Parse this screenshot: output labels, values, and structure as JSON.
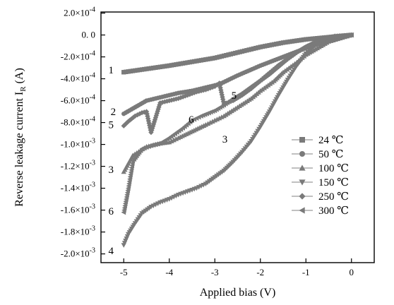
{
  "chart_data": {
    "type": "scatter",
    "xlabel": "Applied bias (V)",
    "ylabel": "Reverse leakage current I",
    "ylabel_sub": "R",
    "ylabel_unit": " (A)",
    "xlim": [
      -5.5,
      0.5
    ],
    "ylim": [
      -0.00208,
      0.00021
    ],
    "x_ticks": [
      -5,
      -4,
      -3,
      -2,
      -1,
      0
    ],
    "x_tick_labels": [
      "-5",
      "-4",
      "-3",
      "-2",
      "-1",
      "0"
    ],
    "y_ticks": [
      0.0002,
      0,
      -0.0002,
      -0.0004,
      -0.0006,
      -0.0008,
      -0.001,
      -0.0012,
      -0.0014,
      -0.0016,
      -0.0018,
      -0.002
    ],
    "y_tick_labels": [
      {
        "mant": "2.0×10",
        "exp": "-4"
      },
      {
        "mant": "0. 0",
        "exp": ""
      },
      {
        "mant": "-2.0×10",
        "exp": "-4"
      },
      {
        "mant": "-4.0×10",
        "exp": "-4"
      },
      {
        "mant": "-6.0×10",
        "exp": "-4"
      },
      {
        "mant": "-8.0×10",
        "exp": "-4"
      },
      {
        "mant": "-1.0×10",
        "exp": "-3"
      },
      {
        "mant": "-1.2×10",
        "exp": "-3"
      },
      {
        "mant": "-1.4×10",
        "exp": "-3"
      },
      {
        "mant": "-1.6×10",
        "exp": "-3"
      },
      {
        "mant": "-1.8×10",
        "exp": "-3"
      },
      {
        "mant": "-2.0×10",
        "exp": "-3"
      }
    ],
    "legend_position": "right",
    "series": [
      {
        "name": "24 ℃",
        "marker": "square",
        "x": [
          -5,
          -4.5,
          -4,
          -3.5,
          -3,
          -2.5,
          -2,
          -1.5,
          -1,
          -0.5,
          0
        ],
        "y": [
          -0.00034,
          -0.00031,
          -0.00028,
          -0.000245,
          -0.00021,
          -0.00016,
          -0.00011,
          -7e-05,
          -4e-05,
          -2e-05,
          0
        ]
      },
      {
        "name": "50 ℃",
        "marker": "circle",
        "x": [
          -5,
          -4.75,
          -4.5,
          -4.2,
          -3.8,
          -3.5,
          -3.2,
          -2.9,
          -2.5,
          -2,
          -1.5,
          -1,
          -0.5,
          0
        ],
        "y": [
          -0.00072,
          -0.00066,
          -0.0006,
          -0.00057,
          -0.00053,
          -0.00051,
          -0.00048,
          -0.00045,
          -0.00037,
          -0.00028,
          -0.0002,
          -0.00012,
          -5e-05,
          0
        ]
      },
      {
        "name": "100 ℃",
        "marker": "triangle-up",
        "x": [
          -5,
          -4.8,
          -4.5,
          -4.2,
          -4,
          -3.8,
          -3.5,
          -3.2,
          -3,
          -2.8,
          -2.5,
          -2.2,
          -2,
          -1.7,
          -1.5,
          -1.2,
          -1,
          -0.5,
          0
        ],
        "y": [
          -0.00125,
          -0.0011,
          -0.00102,
          -0.00099,
          -0.00098,
          -0.00094,
          -0.00088,
          -0.00082,
          -0.00078,
          -0.00074,
          -0.00066,
          -0.00058,
          -0.00051,
          -0.00042,
          -0.00034,
          -0.00025,
          -0.00018,
          -6e-05,
          0
        ]
      },
      {
        "name": "150 ℃",
        "marker": "triangle-down",
        "x": [
          -5,
          -4.9,
          -4.75,
          -4.6,
          -4.4,
          -4.2,
          -4,
          -3.8,
          -3.6,
          -3.4,
          -3.2,
          -3,
          -2.8,
          -2.6,
          -2.4,
          -2.2,
          -2,
          -1.8,
          -1.6,
          -1.4,
          -1.2,
          -1,
          -0.8,
          -0.6,
          -0.4,
          -0.2,
          0
        ],
        "y": [
          -0.00192,
          -0.00182,
          -0.00172,
          -0.00163,
          -0.00157,
          -0.00153,
          -0.0015,
          -0.00146,
          -0.00143,
          -0.0014,
          -0.00136,
          -0.0013,
          -0.00124,
          -0.00116,
          -0.00107,
          -0.00097,
          -0.00084,
          -0.0007,
          -0.00055,
          -0.00041,
          -0.00028,
          -0.00017,
          -0.0001,
          -5e-05,
          -2e-05,
          -1e-05,
          0
        ]
      },
      {
        "name": "250 ℃",
        "marker": "diamond",
        "x": [
          -5,
          -4.9,
          -4.75,
          -4.6,
          -4.5,
          -4.4,
          -4.2,
          -4,
          -3.8,
          -3.6,
          -3.4,
          -3.2,
          -3,
          -2.9,
          -2.8,
          -2.6,
          -2.4,
          -2.2,
          -2,
          -1.8,
          -1.6,
          -1.4,
          -1.2,
          -1,
          -0.8,
          -0.6,
          -0.4,
          -0.2,
          0
        ],
        "y": [
          -0.00083,
          -0.00079,
          -0.00074,
          -0.00071,
          -0.0007,
          -0.00089,
          -0.00062,
          -0.0006,
          -0.00058,
          -0.00055,
          -0.00052,
          -0.0005,
          -0.00047,
          -0.00044,
          -0.00063,
          -0.0006,
          -0.00055,
          -0.00049,
          -0.00042,
          -0.00036,
          -0.00029,
          -0.00022,
          -0.00016,
          -0.00011,
          -7e-05,
          -4e-05,
          -2e-05,
          -1e-05,
          0
        ]
      },
      {
        "name": "300 ℃",
        "marker": "triangle-left",
        "x": [
          -5,
          -4.9,
          -4.8,
          -4.6,
          -4.4,
          -4.2,
          -4,
          -3.7,
          -3.5,
          -3.3,
          -3,
          -2.8,
          -2.6,
          -2.4,
          -2.2,
          -2,
          -1.8,
          -1.6,
          -1.4,
          -1.2,
          -1,
          -0.8,
          -0.6,
          -0.4,
          -0.2,
          0
        ],
        "y": [
          -0.00162,
          -0.0014,
          -0.00115,
          -0.00104,
          -0.00101,
          -0.00099,
          -0.00094,
          -0.00085,
          -0.00078,
          -0.00074,
          -0.00069,
          -0.00064,
          -0.00058,
          -0.00053,
          -0.00047,
          -0.00041,
          -0.00034,
          -0.00027,
          -0.00021,
          -0.00015,
          -0.0001,
          -6e-05,
          -3e-05,
          -1e-05,
          -5e-06,
          0
        ]
      }
    ],
    "curve_labels": [
      {
        "text": "1",
        "x": -5.28,
        "y": -0.00032
      },
      {
        "text": "2",
        "x": -5.23,
        "y": -0.0007
      },
      {
        "text": "5",
        "x": -5.28,
        "y": -0.00082
      },
      {
        "text": "3",
        "x": -5.28,
        "y": -0.00123
      },
      {
        "text": "6",
        "x": -5.28,
        "y": -0.00161
      },
      {
        "text": "4",
        "x": -5.28,
        "y": -0.00197
      },
      {
        "text": "6",
        "x": -3.52,
        "y": -0.00077
      },
      {
        "text": "5",
        "x": -2.58,
        "y": -0.00055
      },
      {
        "text": "3",
        "x": -2.78,
        "y": -0.00095
      }
    ]
  }
}
